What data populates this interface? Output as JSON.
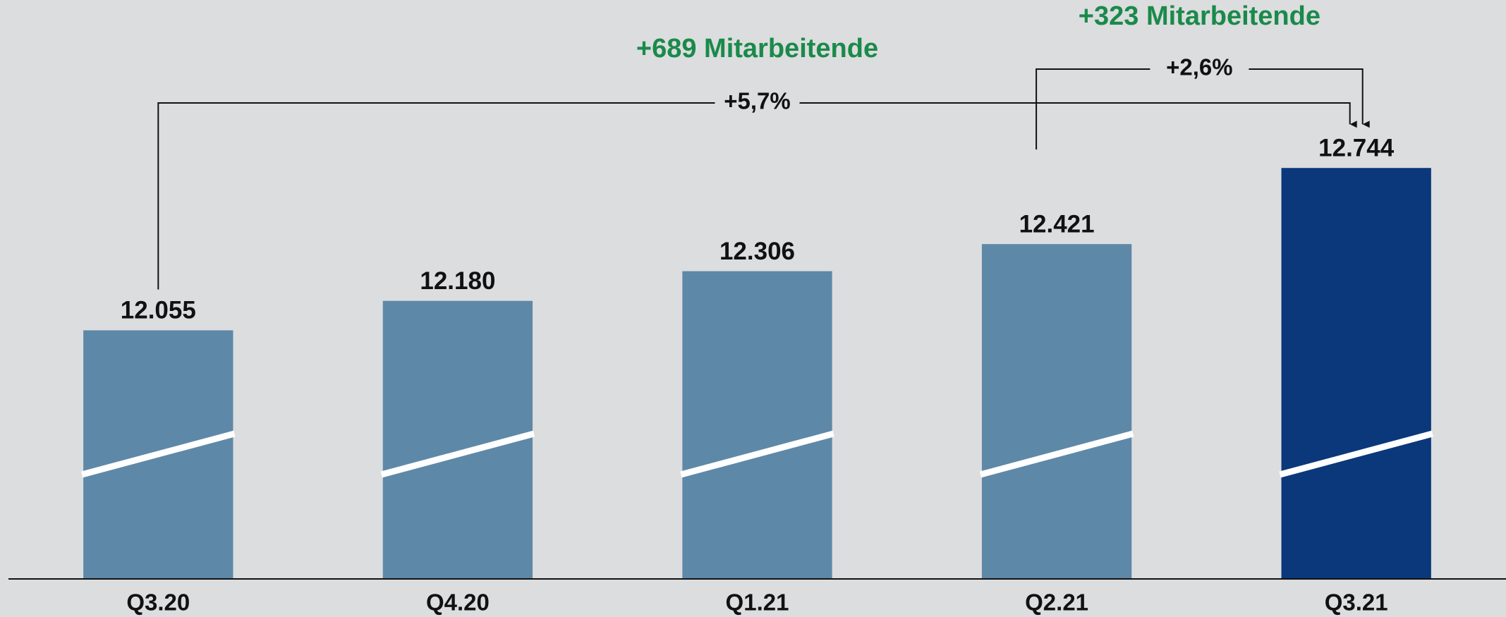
{
  "chart_data": {
    "type": "bar",
    "categories": [
      "Q3.20",
      "Q4.20",
      "Q1.21",
      "Q2.21",
      "Q3.21"
    ],
    "values": [
      12055,
      12180,
      12306,
      12421,
      12744
    ],
    "value_labels": [
      "12.055",
      "12.180",
      "12.306",
      "12.421",
      "12.744"
    ],
    "colors": [
      "#5e88a8",
      "#5e88a8",
      "#5e88a8",
      "#5e88a8",
      "#0a387a"
    ],
    "ylim": [
      11000,
      13400
    ],
    "annotations": [
      "+689 Mitarbeitende",
      "+5,7%",
      "+323 Mitarbeitende",
      "+2,6%"
    ]
  }
}
